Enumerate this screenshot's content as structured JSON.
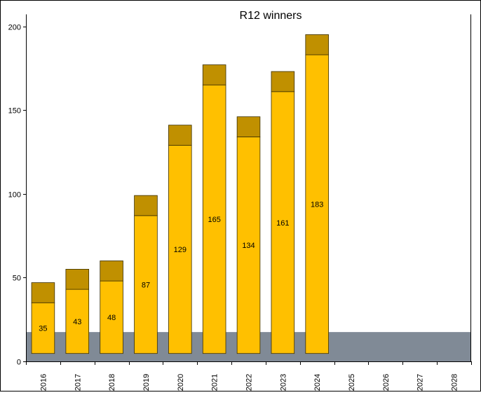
{
  "chart_data": {
    "type": "bar",
    "title": "R12 winners",
    "categories": [
      "2016",
      "2017",
      "2018",
      "2019",
      "2020",
      "2021",
      "2022",
      "2023",
      "2024",
      "2025",
      "2026",
      "2027",
      "2028"
    ],
    "series": [
      {
        "values": [
          35,
          43,
          48,
          87,
          129,
          165,
          134,
          161,
          183,
          null,
          null,
          null,
          null
        ]
      }
    ],
    "cap_values": [
      47,
      55,
      60,
      99,
      141,
      177,
      146,
      173,
      195,
      null,
      null,
      null,
      null
    ],
    "floor_band_value": 17.5,
    "ylim": [
      0,
      200
    ],
    "yticks": [
      0,
      50,
      100,
      150,
      200
    ],
    "ytick_labels": [
      "0",
      "50",
      "100",
      "150",
      "200"
    ],
    "grid": false,
    "legend": "none",
    "colors": {
      "bar_fill": "#FFC000",
      "bar_cap": "#C09000",
      "bar_stroke": "#3a2e00",
      "floor_band": "#808A96",
      "border": "#000000"
    }
  }
}
